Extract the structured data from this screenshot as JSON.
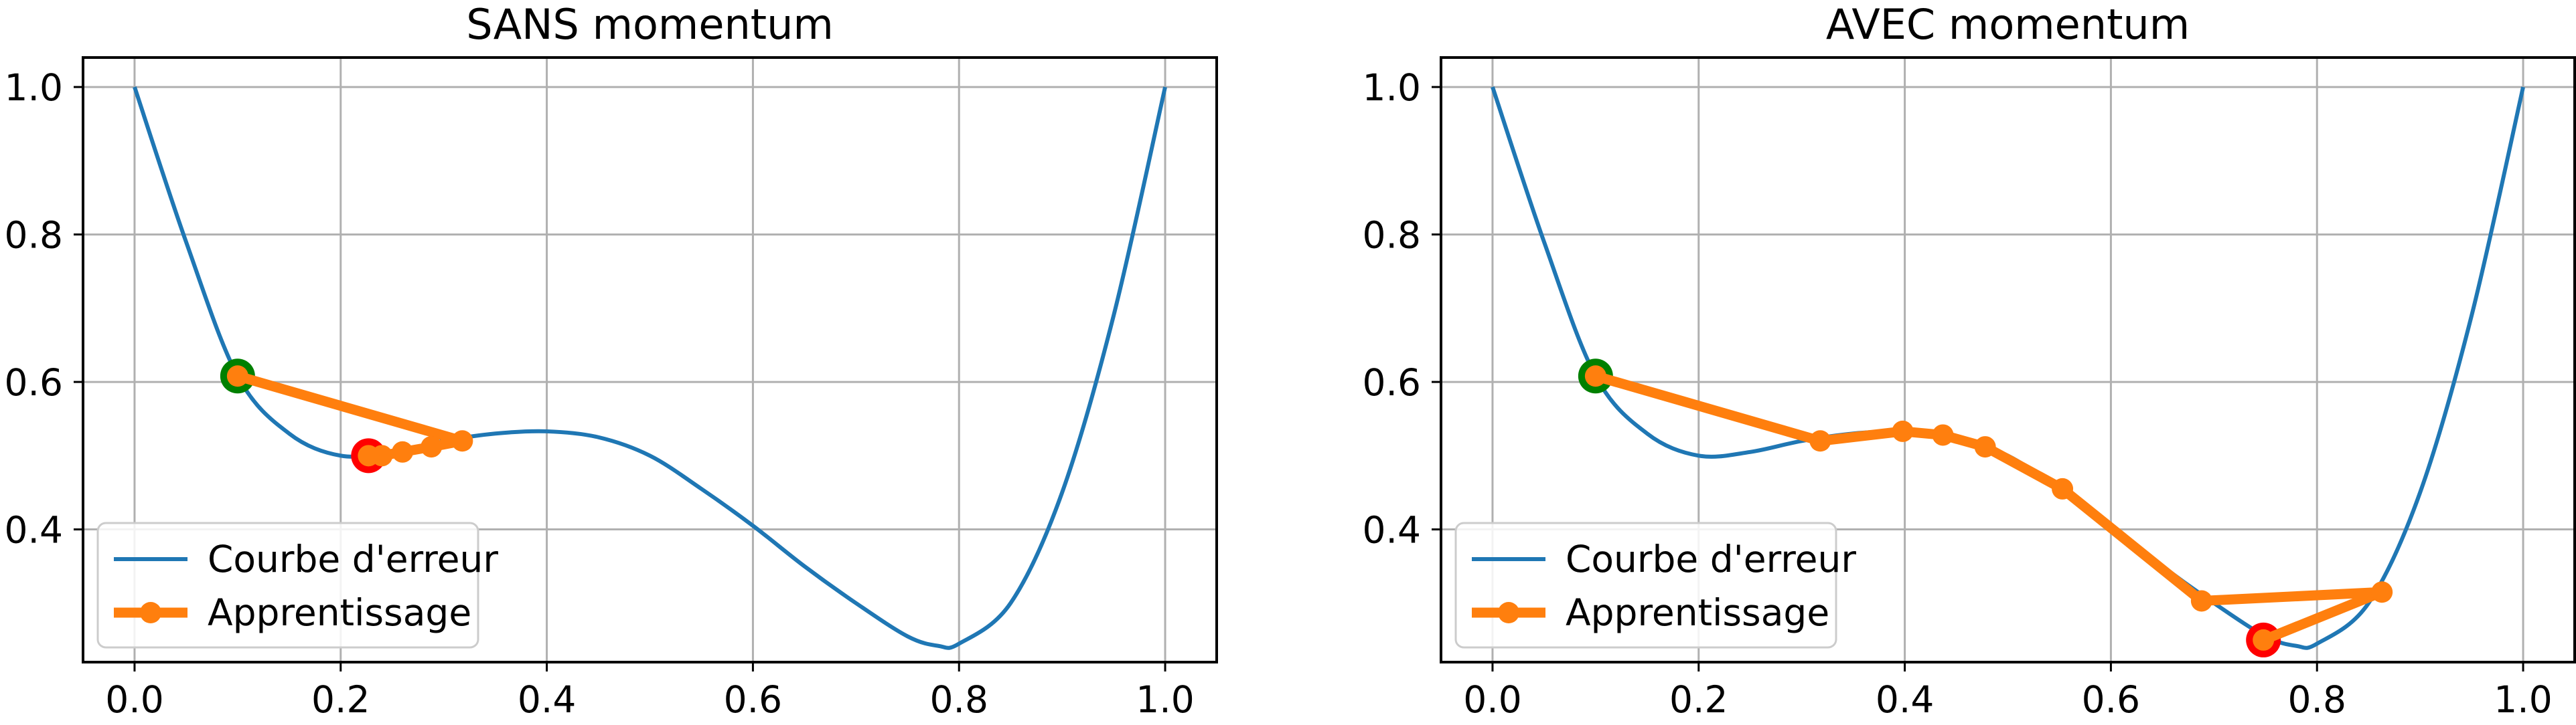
{
  "colors": {
    "curve": "#1f77b4",
    "path": "#ff7f0e",
    "start_marker": "#008000",
    "end_marker": "#ff0000",
    "grid": "#b0b0b0",
    "axes": "#000000"
  },
  "chart_data": [
    {
      "type": "line",
      "title": "SANS momentum",
      "xlim": [
        -0.05,
        1.05
      ],
      "ylim": [
        0.22,
        1.04
      ],
      "x_ticks": [
        0.0,
        0.2,
        0.4,
        0.6,
        0.8,
        1.0
      ],
      "x_tick_labels": [
        "0.0",
        "0.2",
        "0.4",
        "0.6",
        "0.8",
        "1.0"
      ],
      "y_ticks": [
        0.4,
        0.6,
        0.8,
        1.0
      ],
      "y_tick_labels": [
        "0.4",
        "0.6",
        "0.8",
        "1.0"
      ],
      "grid": true,
      "legend": {
        "placement": "lower-left",
        "entries": [
          "Courbe d'erreur",
          "Apprentissage"
        ]
      },
      "series": [
        {
          "name": "Courbe d'erreur",
          "x": [
            0,
            0.05,
            0.1,
            0.15,
            0.2,
            0.25,
            0.3,
            0.35,
            0.4,
            0.45,
            0.5,
            0.55,
            0.6,
            0.65,
            0.7,
            0.75,
            0.78,
            0.8,
            0.85,
            0.9,
            0.95,
            1.0
          ],
          "y": [
            1.0,
            0.79,
            0.608,
            0.53,
            0.5,
            0.505,
            0.52,
            0.53,
            0.533,
            0.525,
            0.5,
            0.455,
            0.405,
            0.35,
            0.3,
            0.255,
            0.242,
            0.245,
            0.3,
            0.45,
            0.69,
            1.0
          ]
        },
        {
          "name": "Apprentissage",
          "x": [
            0.1,
            0.318,
            0.288,
            0.26,
            0.24,
            0.227
          ],
          "y": [
            0.608,
            0.52,
            0.512,
            0.505,
            0.5,
            0.5
          ]
        }
      ],
      "start_point": {
        "x": 0.1,
        "y": 0.608
      },
      "end_point": {
        "x": 0.227,
        "y": 0.5
      }
    },
    {
      "type": "line",
      "title": "AVEC momentum",
      "xlim": [
        -0.05,
        1.05
      ],
      "ylim": [
        0.22,
        1.04
      ],
      "x_ticks": [
        0.0,
        0.2,
        0.4,
        0.6,
        0.8,
        1.0
      ],
      "x_tick_labels": [
        "0.0",
        "0.2",
        "0.4",
        "0.6",
        "0.8",
        "1.0"
      ],
      "y_ticks": [
        0.4,
        0.6,
        0.8,
        1.0
      ],
      "y_tick_labels": [
        "0.4",
        "0.6",
        "0.8",
        "1.0"
      ],
      "grid": true,
      "legend": {
        "placement": "lower-left",
        "entries": [
          "Courbe d'erreur",
          "Apprentissage"
        ]
      },
      "series": [
        {
          "name": "Courbe d'erreur",
          "x": [
            0,
            0.05,
            0.1,
            0.15,
            0.2,
            0.25,
            0.3,
            0.35,
            0.4,
            0.45,
            0.5,
            0.55,
            0.6,
            0.65,
            0.7,
            0.75,
            0.78,
            0.8,
            0.85,
            0.9,
            0.95,
            1.0
          ],
          "y": [
            1.0,
            0.79,
            0.608,
            0.53,
            0.5,
            0.505,
            0.52,
            0.53,
            0.533,
            0.525,
            0.5,
            0.455,
            0.405,
            0.35,
            0.3,
            0.255,
            0.242,
            0.245,
            0.3,
            0.45,
            0.69,
            1.0
          ]
        },
        {
          "name": "Apprentissage",
          "x": [
            0.1,
            0.318,
            0.398,
            0.437,
            0.478,
            0.553,
            0.688,
            0.863,
            0.748
          ],
          "y": [
            0.608,
            0.52,
            0.533,
            0.528,
            0.512,
            0.455,
            0.303,
            0.315,
            0.25
          ]
        }
      ],
      "start_point": {
        "x": 0.1,
        "y": 0.608
      },
      "end_point": {
        "x": 0.748,
        "y": 0.25
      }
    }
  ]
}
